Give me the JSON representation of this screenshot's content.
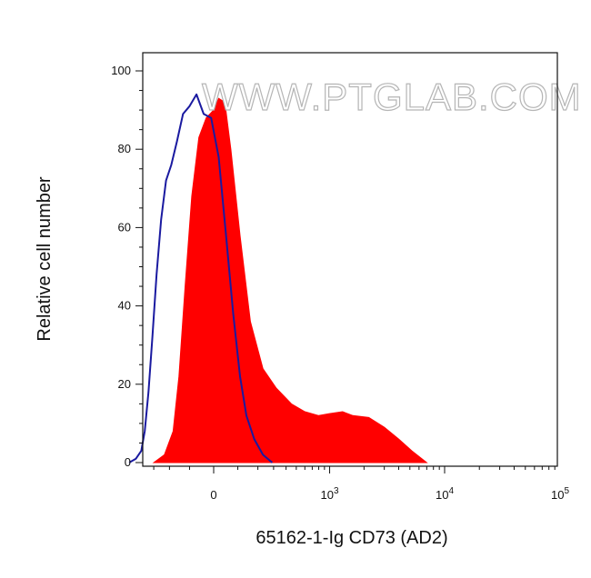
{
  "chart_data": {
    "type": "area",
    "title": "",
    "xlabel": "65162-1-Ig CD73 (AD2)",
    "ylabel": "Relative cell number",
    "x_scale": "biexponential",
    "ylim": [
      0,
      100
    ],
    "y_ticks": [
      0,
      20,
      40,
      60,
      80,
      100
    ],
    "x_ticks": [
      {
        "value": 0,
        "label": "0"
      },
      {
        "value": 1000,
        "base": "10",
        "exp": "3"
      },
      {
        "value": 10000,
        "base": "10",
        "exp": "4"
      },
      {
        "value": 100000,
        "base": "10",
        "exp": "5"
      }
    ],
    "watermark": "WWW.PTGLAB.COM",
    "series": [
      {
        "role": "stained",
        "style": "filled",
        "color": "#ff0000",
        "points": [
          [
            -300,
            0
          ],
          [
            -230,
            2
          ],
          [
            -180,
            8
          ],
          [
            -150,
            22
          ],
          [
            -120,
            45
          ],
          [
            -90,
            68
          ],
          [
            -60,
            83
          ],
          [
            -30,
            88
          ],
          [
            0,
            90
          ],
          [
            20,
            93
          ],
          [
            45,
            92
          ],
          [
            70,
            80
          ],
          [
            110,
            58
          ],
          [
            160,
            36
          ],
          [
            230,
            24
          ],
          [
            320,
            19
          ],
          [
            450,
            15
          ],
          [
            600,
            13
          ],
          [
            800,
            12
          ],
          [
            1000,
            12.5
          ],
          [
            1300,
            13
          ],
          [
            1600,
            12
          ],
          [
            2200,
            11.5
          ],
          [
            3000,
            9
          ],
          [
            4000,
            6
          ],
          [
            5200,
            3
          ],
          [
            7000,
            0
          ]
        ]
      },
      {
        "role": "isotype control",
        "style": "outline",
        "color": "#1a1aa0",
        "points": [
          [
            -520,
            0
          ],
          [
            -450,
            1
          ],
          [
            -400,
            3
          ],
          [
            -370,
            8
          ],
          [
            -340,
            18
          ],
          [
            -310,
            32
          ],
          [
            -280,
            48
          ],
          [
            -250,
            62
          ],
          [
            -220,
            72
          ],
          [
            -190,
            76
          ],
          [
            -160,
            82
          ],
          [
            -130,
            89
          ],
          [
            -100,
            91
          ],
          [
            -70,
            94
          ],
          [
            -40,
            89
          ],
          [
            -10,
            88
          ],
          [
            20,
            78
          ],
          [
            50,
            58
          ],
          [
            80,
            38
          ],
          [
            110,
            22
          ],
          [
            140,
            12
          ],
          [
            180,
            6
          ],
          [
            230,
            2
          ],
          [
            290,
            0
          ]
        ]
      }
    ]
  }
}
